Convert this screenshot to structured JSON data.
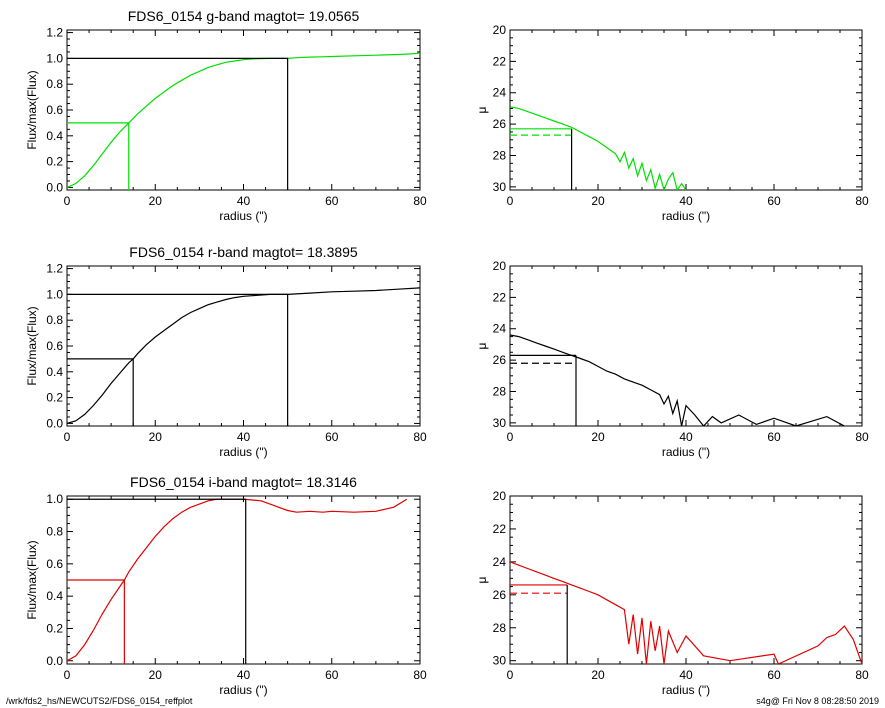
{
  "footer": {
    "left": "/wrk/fds2_hs/NEWCUTS2/FDS6_0154_reffplot",
    "right": "s4g@  Fri Nov  8 08:28:50 2019"
  },
  "chart_data": [
    {
      "type": "line",
      "band": "g",
      "color": "#00e000",
      "title": "FDS6_0154 g-band  magtot=      19.0565",
      "xlabel": "radius (\")",
      "ylabel": "Flux/max(Flux)",
      "xlim": [
        0,
        80
      ],
      "ylim": [
        -0.02,
        1.22
      ],
      "xticks": [
        0,
        20,
        40,
        60,
        80
      ],
      "yticks": [
        0.0,
        0.2,
        0.4,
        0.6,
        0.8,
        1.0,
        1.2
      ],
      "ytick_labels": [
        "0.0",
        "0.2",
        "0.4",
        "0.6",
        "0.8",
        "1.0",
        "1.2"
      ],
      "series": [
        {
          "x": [
            0,
            2,
            4,
            6,
            8,
            10,
            12,
            14,
            16,
            18,
            20,
            22,
            24,
            26,
            28,
            30,
            32,
            34,
            36,
            38,
            40,
            42,
            44,
            46,
            48,
            50,
            52,
            55,
            58,
            60,
            65,
            70,
            75,
            78,
            80
          ],
          "y": [
            0.0,
            0.03,
            0.09,
            0.17,
            0.26,
            0.35,
            0.43,
            0.5,
            0.57,
            0.63,
            0.69,
            0.74,
            0.79,
            0.83,
            0.87,
            0.9,
            0.93,
            0.95,
            0.97,
            0.98,
            0.99,
            0.995,
            0.998,
            1.0,
            1.0,
            1.0,
            1.005,
            1.01,
            1.012,
            1.015,
            1.02,
            1.025,
            1.03,
            1.035,
            1.04
          ]
        }
      ],
      "r_eff": 14.0,
      "flux_half": 0.5,
      "r_tot": 50.0,
      "flux_tot": 1.0
    },
    {
      "type": "line",
      "band": "g",
      "color": "#00e000",
      "xlabel": "radius (\")",
      "ylabel": "μ",
      "xlim": [
        0,
        80
      ],
      "ylim": [
        30.2,
        20
      ],
      "xticks": [
        0,
        20,
        40,
        60,
        80
      ],
      "yticks": [
        20,
        22,
        24,
        26,
        28,
        30
      ],
      "series": [
        {
          "x": [
            0,
            2,
            4,
            6,
            8,
            10,
            12,
            14,
            16,
            18,
            20,
            22,
            24,
            25,
            26,
            27,
            28,
            29,
            30,
            31,
            32,
            33,
            34,
            35,
            36,
            37,
            38,
            39,
            40
          ],
          "y": [
            24.9,
            25.0,
            25.2,
            25.4,
            25.6,
            25.8,
            26.0,
            26.2,
            26.5,
            26.8,
            27.1,
            27.5,
            27.9,
            28.4,
            27.8,
            28.8,
            28.2,
            29.3,
            28.5,
            29.6,
            28.9,
            30.1,
            29.2,
            30.2,
            29.5,
            29.1,
            30.2,
            29.8,
            30.2
          ]
        }
      ],
      "mu_eff": 26.3,
      "mu_mean": 26.7,
      "r_eff": 14.0
    },
    {
      "type": "line",
      "band": "r",
      "color": "#000000",
      "title": "FDS6_0154 r-band  magtot=      18.3895",
      "xlabel": "radius (\")",
      "ylabel": "Flux/max(Flux)",
      "xlim": [
        0,
        80
      ],
      "ylim": [
        -0.02,
        1.22
      ],
      "xticks": [
        0,
        20,
        40,
        60,
        80
      ],
      "yticks": [
        0.0,
        0.2,
        0.4,
        0.6,
        0.8,
        1.0,
        1.2
      ],
      "ytick_labels": [
        "0.0",
        "0.2",
        "0.4",
        "0.6",
        "0.8",
        "1.0",
        "1.2"
      ],
      "series": [
        {
          "x": [
            0,
            2,
            4,
            6,
            8,
            10,
            12,
            14,
            15,
            16,
            18,
            20,
            22,
            24,
            26,
            28,
            30,
            32,
            34,
            36,
            38,
            40,
            42,
            44,
            46,
            48,
            50,
            55,
            60,
            65,
            70,
            75,
            80
          ],
          "y": [
            0.0,
            0.02,
            0.07,
            0.14,
            0.22,
            0.31,
            0.39,
            0.47,
            0.5,
            0.54,
            0.61,
            0.67,
            0.72,
            0.77,
            0.82,
            0.86,
            0.89,
            0.92,
            0.94,
            0.96,
            0.975,
            0.985,
            0.99,
            0.995,
            1.0,
            1.0,
            1.0,
            1.01,
            1.02,
            1.025,
            1.03,
            1.04,
            1.05
          ]
        }
      ],
      "r_eff": 15.0,
      "flux_half": 0.5,
      "r_tot": 50.0,
      "flux_tot": 1.0
    },
    {
      "type": "line",
      "band": "r",
      "color": "#000000",
      "xlabel": "radius (\")",
      "ylabel": "μ",
      "xlim": [
        0,
        80
      ],
      "ylim": [
        30.2,
        20
      ],
      "xticks": [
        0,
        20,
        40,
        60,
        80
      ],
      "yticks": [
        20,
        22,
        24,
        26,
        28,
        30
      ],
      "series": [
        {
          "x": [
            0,
            2,
            4,
            6,
            8,
            10,
            12,
            14,
            16,
            18,
            20,
            22,
            24,
            26,
            28,
            30,
            32,
            34,
            35,
            36,
            37,
            38,
            39,
            40,
            42,
            44,
            46,
            48,
            52,
            56,
            60,
            65,
            72,
            76
          ],
          "y": [
            24.4,
            24.5,
            24.7,
            24.9,
            25.1,
            25.3,
            25.5,
            25.7,
            25.9,
            26.1,
            26.4,
            26.7,
            26.9,
            27.2,
            27.4,
            27.6,
            27.9,
            28.2,
            28.8,
            28.3,
            29.4,
            28.6,
            30.2,
            28.9,
            29.5,
            30.2,
            29.6,
            30.0,
            29.5,
            30.1,
            29.7,
            30.2,
            29.6,
            30.2
          ]
        }
      ],
      "mu_eff": 25.7,
      "mu_mean": 26.2,
      "r_eff": 15.0
    },
    {
      "type": "line",
      "band": "i",
      "color": "#e00000",
      "title": "FDS6_0154 i-band  magtot=      18.3146",
      "xlabel": "radius (\")",
      "ylabel": "Flux/max(Flux)",
      "xlim": [
        0,
        80
      ],
      "ylim": [
        -0.02,
        1.02
      ],
      "xticks": [
        0,
        20,
        40,
        60,
        80
      ],
      "yticks": [
        0.0,
        0.2,
        0.4,
        0.6,
        0.8,
        1.0
      ],
      "ytick_labels": [
        "0.0",
        "0.2",
        "0.4",
        "0.6",
        "0.8",
        "1.0"
      ],
      "series": [
        {
          "x": [
            0,
            2,
            4,
            6,
            8,
            10,
            12,
            13,
            14,
            16,
            18,
            20,
            22,
            24,
            26,
            28,
            30,
            32,
            34,
            36,
            38,
            40,
            42,
            44,
            46,
            48,
            50,
            52,
            55,
            58,
            60,
            65,
            70,
            74,
            77
          ],
          "y": [
            0.0,
            0.03,
            0.1,
            0.19,
            0.29,
            0.38,
            0.46,
            0.5,
            0.55,
            0.63,
            0.7,
            0.77,
            0.83,
            0.88,
            0.92,
            0.95,
            0.97,
            0.99,
            1.0,
            1.0,
            1.0,
            1.0,
            0.995,
            0.99,
            0.97,
            0.95,
            0.93,
            0.92,
            0.925,
            0.92,
            0.925,
            0.92,
            0.925,
            0.95,
            1.0
          ]
        }
      ],
      "r_eff": 13.0,
      "flux_half": 0.5,
      "r_tot": 40.5,
      "flux_tot": 1.0
    },
    {
      "type": "line",
      "band": "i",
      "color": "#e00000",
      "xlabel": "radius (\")",
      "ylabel": "μ",
      "xlim": [
        0,
        80
      ],
      "ylim": [
        30.2,
        20
      ],
      "xticks": [
        0,
        20,
        40,
        60,
        80
      ],
      "yticks": [
        20,
        22,
        24,
        26,
        28,
        30
      ],
      "series": [
        {
          "x": [
            0,
            2,
            4,
            6,
            8,
            10,
            12,
            14,
            16,
            18,
            20,
            22,
            24,
            26,
            27,
            28,
            29,
            30,
            31,
            32,
            33,
            34,
            35,
            36,
            38,
            40,
            44,
            50,
            60,
            61,
            70,
            72,
            74,
            76,
            78,
            80
          ],
          "y": [
            24.0,
            24.2,
            24.4,
            24.6,
            24.8,
            25.0,
            25.2,
            25.4,
            25.6,
            25.8,
            26.0,
            26.3,
            26.6,
            26.9,
            29.0,
            27.2,
            29.6,
            27.4,
            30.2,
            27.6,
            29.4,
            27.9,
            30.2,
            28.2,
            29.5,
            28.5,
            29.7,
            30.0,
            29.6,
            30.2,
            29.1,
            28.6,
            28.4,
            27.9,
            28.7,
            30.2
          ]
        }
      ],
      "mu_eff": 25.4,
      "mu_mean": 25.9,
      "r_eff": 13.0
    }
  ]
}
